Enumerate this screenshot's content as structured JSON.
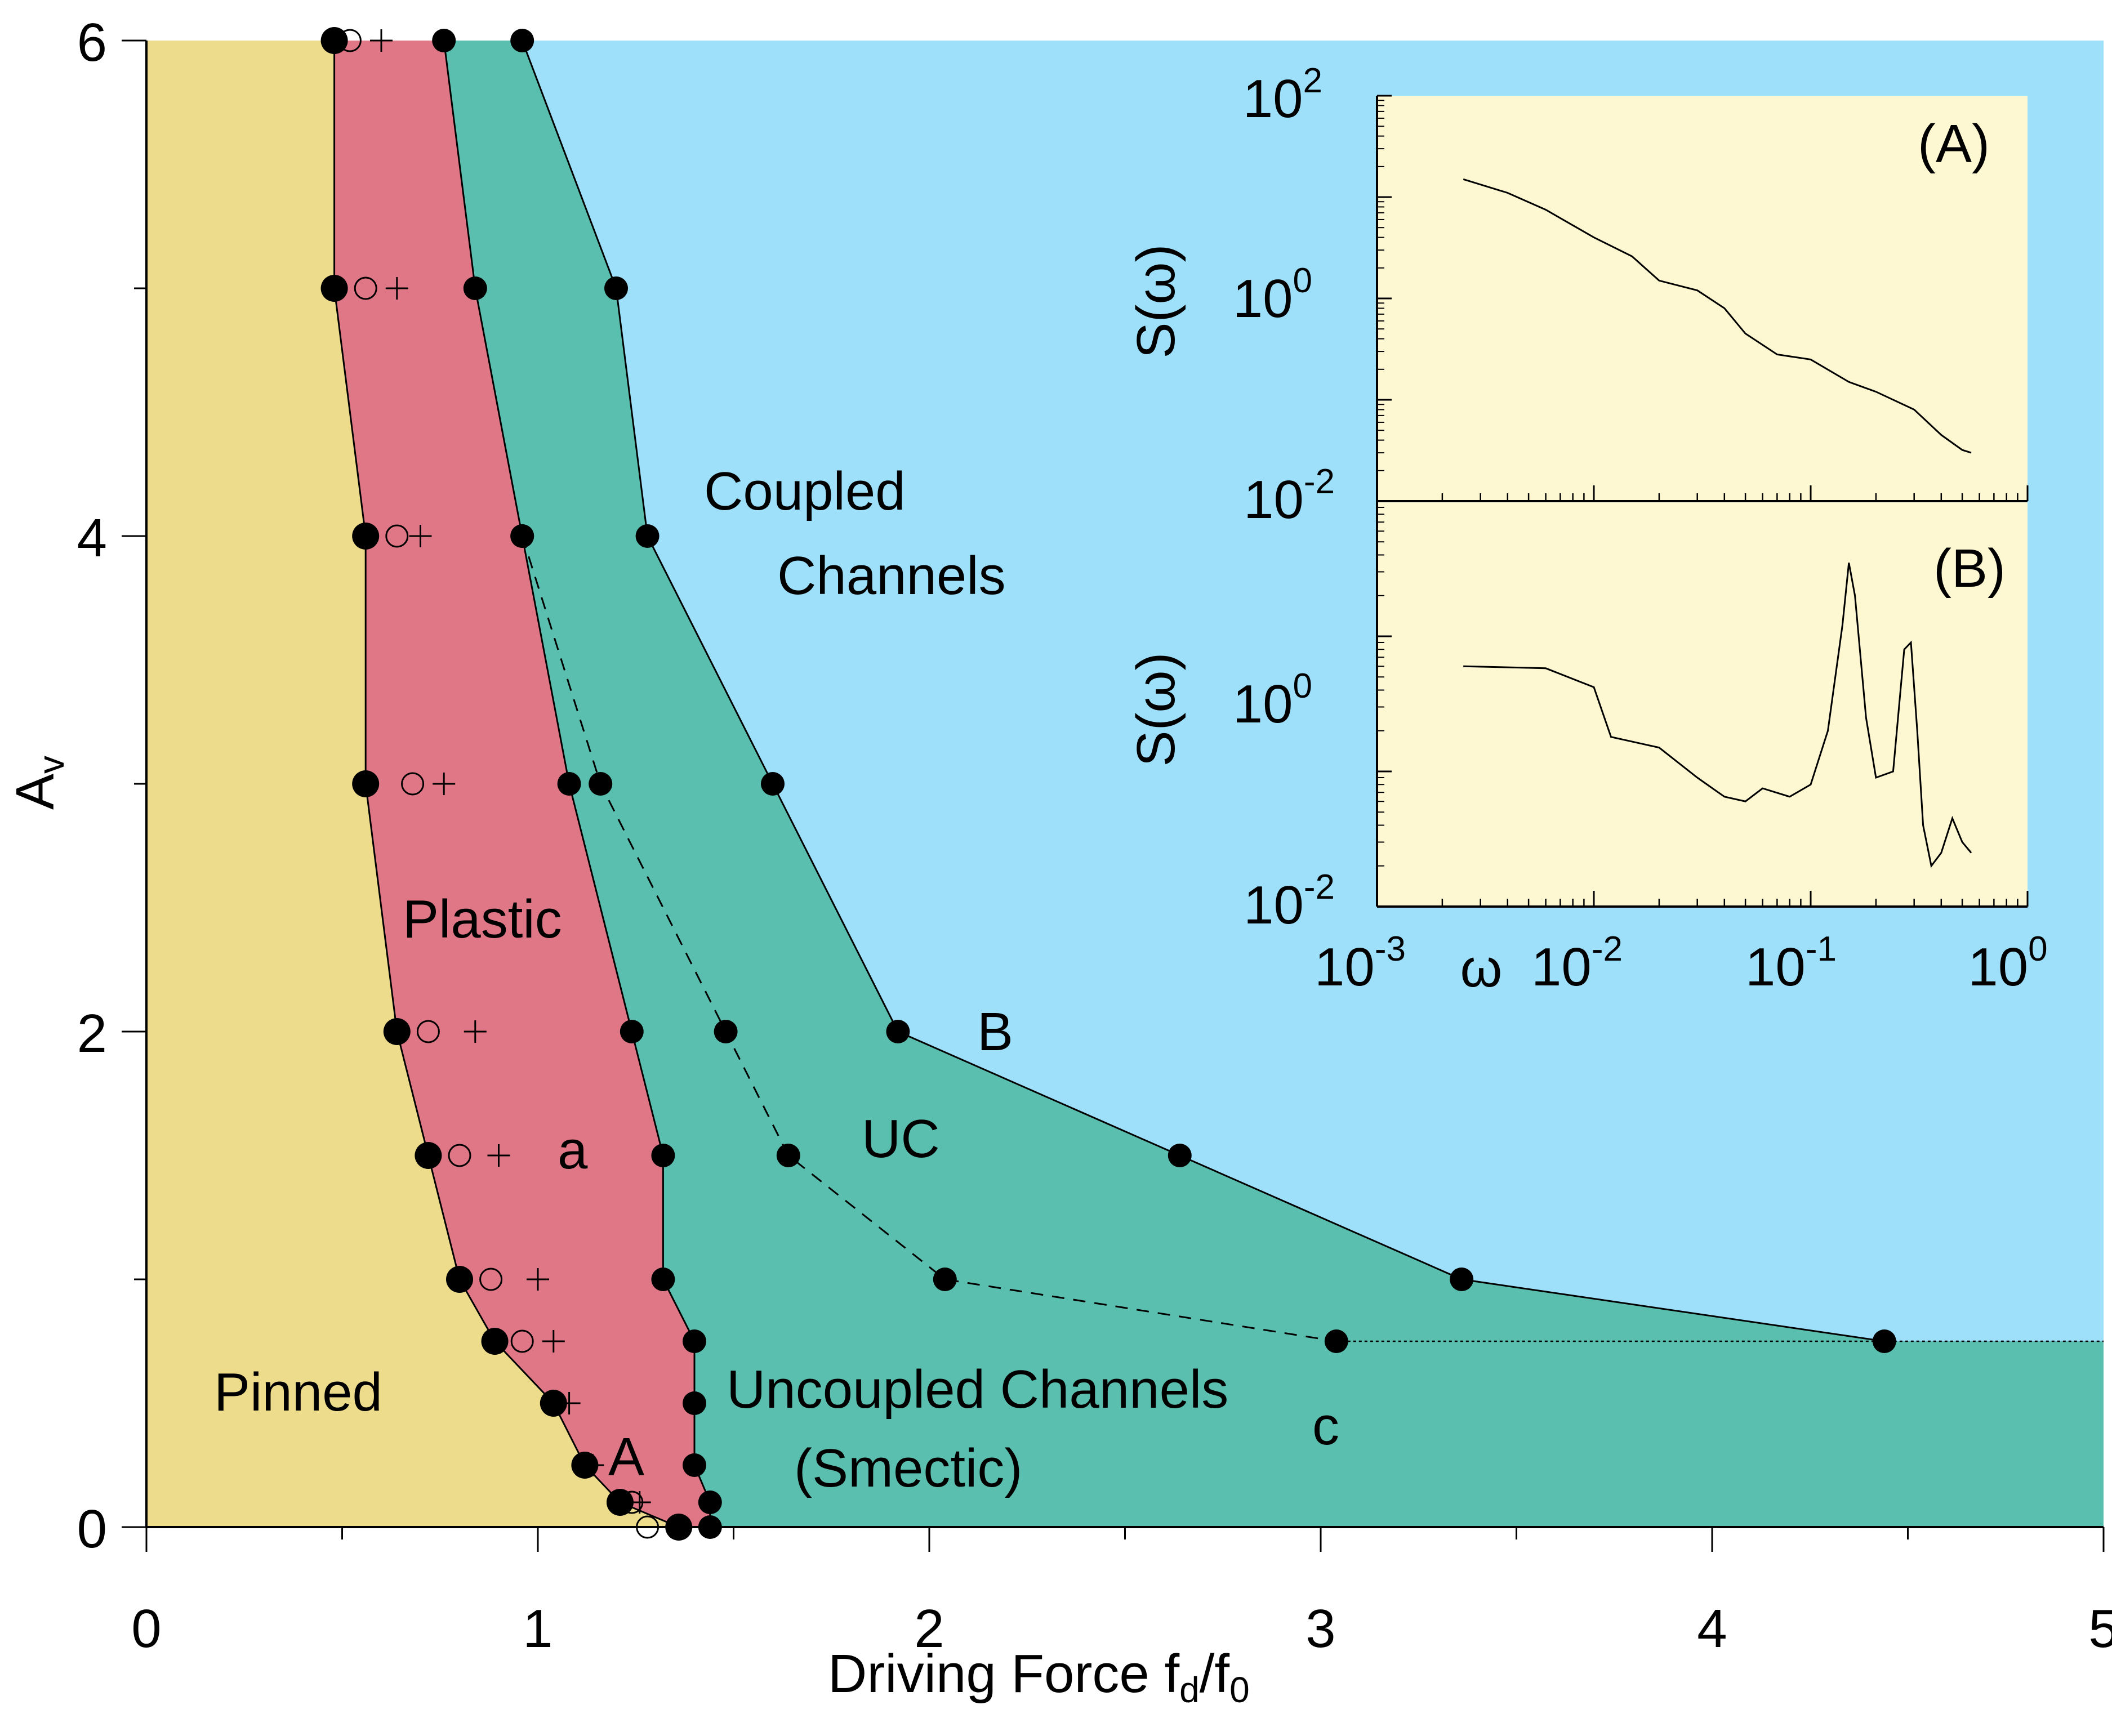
{
  "colors": {
    "pinned": "#eddc8c",
    "plastic": "#e07787",
    "uncoupled": "#5bbfb0",
    "coupled": "#9edffa",
    "inset_bg": "#fdf7d2",
    "ink": "#000000"
  },
  "chart_data": [
    {
      "type": "scatter",
      "title": "",
      "xlabel": "Driving  Force  f",
      "xlabel_sub1": "d",
      "xlabel_mid": "/f",
      "xlabel_sub2": "0",
      "ylabel": "A",
      "ylabel_sub": "v",
      "xlim": [
        0,
        5
      ],
      "ylim": [
        0,
        6
      ],
      "xticks": [
        0,
        1,
        2,
        3,
        4,
        5
      ],
      "xtick_labels": [
        "0",
        "1",
        "2",
        "3",
        "4",
        "5"
      ],
      "xminor": [
        0.5,
        1.5,
        2.5,
        3.5,
        4.5
      ],
      "yticks": [
        0,
        2,
        4,
        6
      ],
      "ytick_labels": [
        "0",
        "2",
        "4",
        "6"
      ],
      "yminor": [
        1,
        3,
        5
      ],
      "regions": {
        "pinned_label": "Pinned",
        "plastic_label": "Plastic",
        "uncoupled_label_1": "Uncoupled Channels",
        "uncoupled_label_2": "(Smectic)",
        "uc_label": "UC",
        "coupled_label_1": "Coupled",
        "coupled_label_2": "Channels"
      },
      "point_labels": {
        "a": "a",
        "A": "A",
        "B": "B",
        "c": "c"
      },
      "boundaries": {
        "depinning_large": [
          [
            0.48,
            6
          ],
          [
            0.48,
            5
          ],
          [
            0.56,
            4
          ],
          [
            0.56,
            3
          ],
          [
            0.64,
            2
          ],
          [
            0.72,
            1.5
          ],
          [
            0.8,
            1
          ],
          [
            0.89,
            0.75
          ],
          [
            1.04,
            0.5
          ],
          [
            1.12,
            0.25
          ],
          [
            1.21,
            0.1
          ],
          [
            1.36,
            0
          ]
        ],
        "plastic_to_smectic": [
          [
            0.76,
            6
          ],
          [
            0.84,
            5
          ],
          [
            0.96,
            4
          ],
          [
            1.08,
            3
          ],
          [
            1.24,
            2
          ],
          [
            1.32,
            1.5
          ],
          [
            1.32,
            1
          ],
          [
            1.4,
            0.75
          ],
          [
            1.4,
            0.5
          ],
          [
            1.4,
            0.25
          ],
          [
            1.44,
            0.1
          ],
          [
            1.44,
            0
          ]
        ],
        "uc_to_coupled": [
          [
            0.96,
            6
          ],
          [
            1.2,
            5
          ],
          [
            1.28,
            4
          ],
          [
            1.6,
            3
          ],
          [
            1.92,
            2
          ],
          [
            2.64,
            1.5
          ],
          [
            3.36,
            1
          ],
          [
            4.44,
            0.75
          ]
        ],
        "dashed_line": [
          [
            0.96,
            4
          ],
          [
            1.16,
            3
          ],
          [
            1.48,
            2
          ],
          [
            1.64,
            1.5
          ],
          [
            2.04,
            1
          ],
          [
            3.04,
            0.75
          ]
        ],
        "depinning_open_circles": [
          [
            0.52,
            6
          ],
          [
            0.56,
            5
          ],
          [
            0.64,
            4
          ],
          [
            0.68,
            3
          ],
          [
            0.72,
            2
          ],
          [
            0.8,
            1.5
          ],
          [
            0.88,
            1
          ],
          [
            0.96,
            0.75
          ],
          [
            1.24,
            0.1
          ],
          [
            1.28,
            0
          ]
        ],
        "depinning_crosses": [
          [
            0.6,
            6
          ],
          [
            0.64,
            5
          ],
          [
            0.7,
            4
          ],
          [
            0.76,
            3
          ],
          [
            0.84,
            2
          ],
          [
            0.9,
            1.5
          ],
          [
            1.0,
            1
          ],
          [
            1.04,
            0.75
          ],
          [
            1.08,
            0.5
          ],
          [
            1.14,
            0.25
          ],
          [
            1.26,
            0.1
          ]
        ]
      }
    },
    {
      "type": "line",
      "panel_label": "(A)",
      "ylabel": "S(ω)",
      "log_x": true,
      "log_y": true,
      "xlim": [
        0.001,
        1
      ],
      "ylim": [
        0.01,
        100
      ],
      "ytick_bases": [
        "10",
        "10",
        "10"
      ],
      "ytick_exps": [
        "2",
        "0",
        "-2"
      ],
      "ytick_values": [
        100,
        1,
        0.01
      ],
      "series": [
        {
          "x": [
            0.0025,
            0.004,
            0.006,
            0.01,
            0.015,
            0.02,
            0.03,
            0.04,
            0.05,
            0.07,
            0.1,
            0.15,
            0.2,
            0.3,
            0.4,
            0.5,
            0.55
          ],
          "y": [
            15,
            11,
            7.5,
            4,
            2.6,
            1.5,
            1.2,
            0.8,
            0.45,
            0.28,
            0.25,
            0.15,
            0.12,
            0.08,
            0.045,
            0.032,
            0.03
          ]
        }
      ]
    },
    {
      "type": "line",
      "panel_label": "(B)",
      "ylabel": "S(ω)",
      "xlabel": "ω",
      "log_x": true,
      "log_y": true,
      "xlim": [
        0.001,
        1
      ],
      "ylim": [
        0.01,
        10
      ],
      "xtick_bases": [
        "10",
        "10",
        "10",
        "10"
      ],
      "xtick_exps": [
        "-3",
        "-2",
        "-1",
        "0"
      ],
      "xtick_values": [
        0.001,
        0.01,
        0.1,
        1
      ],
      "ytick_bases": [
        "10",
        "10"
      ],
      "ytick_exps": [
        "0",
        "-2"
      ],
      "ytick_values": [
        1,
        0.01
      ],
      "series": [
        {
          "x": [
            0.0025,
            0.006,
            0.01,
            0.012,
            0.02,
            0.03,
            0.04,
            0.05,
            0.06,
            0.08,
            0.1,
            0.12,
            0.14,
            0.15,
            0.16,
            0.18,
            0.2,
            0.24,
            0.27,
            0.29,
            0.31,
            0.33,
            0.36,
            0.4,
            0.45,
            0.5,
            0.55
          ],
          "y": [
            0.6,
            0.58,
            0.42,
            0.18,
            0.15,
            0.09,
            0.065,
            0.06,
            0.075,
            0.065,
            0.08,
            0.2,
            1.2,
            3.5,
            2.0,
            0.25,
            0.09,
            0.1,
            0.8,
            0.9,
            0.2,
            0.04,
            0.02,
            0.025,
            0.045,
            0.03,
            0.025
          ]
        }
      ]
    }
  ]
}
